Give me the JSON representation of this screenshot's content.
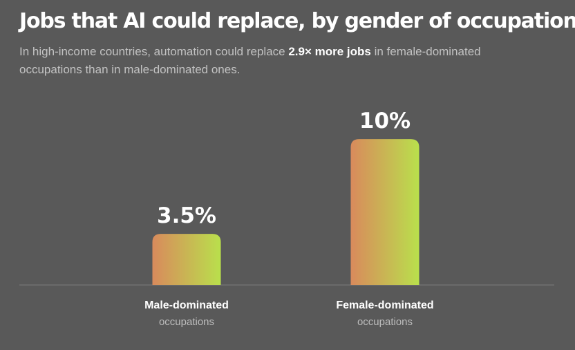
{
  "header": {
    "title": "Jobs that AI could replace, by gender of occupation",
    "subtitle_pre": "In high-income countries, automation could replace ",
    "subtitle_highlight": "2.9× more jobs",
    "subtitle_post": " in female-dominated occupations than in male-dominated ones."
  },
  "colors": {
    "background": "#595959",
    "bar_gradient_start": "#d98a5c",
    "bar_gradient_end": "#b9e04c",
    "baseline": "#7a7a7a"
  },
  "chart_data": {
    "type": "bar",
    "categories": [
      "Male-dominated",
      "Female-dominated"
    ],
    "category_sublabels": [
      "occupations",
      "occupations"
    ],
    "values": [
      3.5,
      10
    ],
    "value_labels": [
      "3.5%",
      "10%"
    ],
    "title": "Jobs that AI could replace, by gender of occupation",
    "xlabel": "",
    "ylabel": "",
    "ylim": [
      0,
      11
    ],
    "grid": false,
    "legend": "none"
  }
}
